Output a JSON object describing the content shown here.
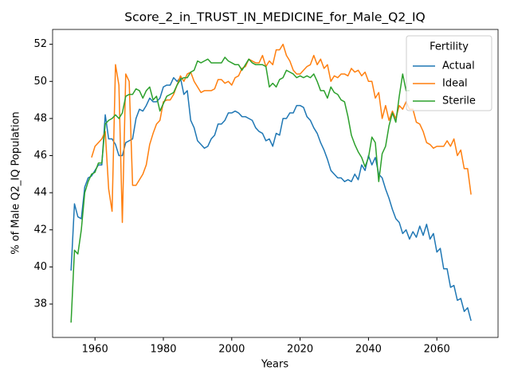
{
  "chart_data": {
    "type": "line",
    "title": "Score_2_in_TRUST_IN_MEDICINE_for_Male_Q2_IQ",
    "xlabel": "Years",
    "ylabel": "% of Male Q2_IQ Population",
    "legend_title": "Fertility",
    "legend": "upper right",
    "grid": false,
    "xlim": [
      1947.6,
      2077.9
    ],
    "xticks": [
      1960,
      1980,
      2000,
      2020,
      2040,
      2060
    ],
    "ylim": [
      36.2,
      52.8
    ],
    "yticks": [
      38,
      40,
      42,
      44,
      46,
      48,
      50,
      52
    ],
    "x": [
      1953,
      1954,
      1955,
      1956,
      1957,
      1958,
      1959,
      1960,
      1961,
      1962,
      1963,
      1964,
      1965,
      1966,
      1967,
      1968,
      1969,
      1970,
      1971,
      1972,
      1973,
      1974,
      1975,
      1976,
      1977,
      1978,
      1979,
      1980,
      1981,
      1982,
      1983,
      1984,
      1985,
      1986,
      1987,
      1988,
      1989,
      1990,
      1991,
      1992,
      1993,
      1994,
      1995,
      1996,
      1997,
      1998,
      1999,
      2000,
      2001,
      2002,
      2003,
      2004,
      2005,
      2006,
      2007,
      2008,
      2009,
      2010,
      2011,
      2012,
      2013,
      2014,
      2015,
      2016,
      2017,
      2018,
      2019,
      2020,
      2021,
      2022,
      2023,
      2024,
      2025,
      2026,
      2027,
      2028,
      2029,
      2030,
      2031,
      2032,
      2033,
      2034,
      2035,
      2036,
      2037,
      2038,
      2039,
      2040,
      2041,
      2042,
      2043,
      2044,
      2045,
      2046,
      2047,
      2048,
      2049,
      2050,
      2051,
      2052,
      2053,
      2054,
      2055,
      2056,
      2057,
      2058,
      2059,
      2060,
      2061,
      2062,
      2063,
      2064,
      2065,
      2066,
      2067,
      2068,
      2069,
      2070
    ],
    "series": [
      {
        "name": "Actual",
        "color": "#1f77b4",
        "values": [
          39.8,
          43.4,
          42.7,
          42.6,
          44.3,
          44.8,
          44.9,
          45.2,
          45.5,
          45.5,
          48.2,
          46.9,
          46.9,
          46.6,
          46.0,
          46.0,
          46.7,
          46.8,
          46.9,
          48.0,
          48.5,
          48.4,
          48.7,
          49.1,
          48.9,
          48.9,
          49.1,
          49.7,
          49.8,
          49.8,
          50.2,
          50.0,
          50.2,
          49.3,
          49.5,
          47.9,
          47.5,
          46.8,
          46.6,
          46.4,
          46.5,
          46.9,
          47.1,
          47.7,
          47.7,
          47.9,
          48.3,
          48.3,
          48.4,
          48.3,
          48.1,
          48.1,
          48.0,
          47.9,
          47.5,
          47.3,
          47.2,
          46.8,
          46.9,
          46.5,
          47.2,
          47.1,
          48.0,
          48.0,
          48.3,
          48.3,
          48.7,
          48.7,
          48.6,
          48.1,
          47.9,
          47.5,
          47.2,
          46.7,
          46.3,
          45.8,
          45.2,
          45.0,
          44.8,
          44.8,
          44.6,
          44.7,
          44.6,
          45.0,
          44.7,
          45.5,
          45.2,
          46.0,
          45.5,
          45.9,
          45.0,
          44.8,
          44.2,
          43.7,
          43.1,
          42.6,
          42.4,
          41.8,
          42.0,
          41.5,
          41.9,
          41.6,
          42.2,
          41.7,
          42.3,
          41.5,
          41.8,
          40.8,
          41.0,
          39.9,
          39.9,
          38.9,
          39.0,
          38.2,
          38.3,
          37.6,
          37.8,
          37.1
        ]
      },
      {
        "name": "Ideal",
        "color": "#ff7f0e",
        "values": [
          null,
          null,
          null,
          null,
          null,
          null,
          45.9,
          46.5,
          46.7,
          46.9,
          47.3,
          44.2,
          43.0,
          50.9,
          49.8,
          42.4,
          50.4,
          50.0,
          44.4,
          44.4,
          44.7,
          45.0,
          45.5,
          46.6,
          47.2,
          47.7,
          47.9,
          48.9,
          49.0,
          49.0,
          49.3,
          49.8,
          50.3,
          50.0,
          50.4,
          50.5,
          50.0,
          49.7,
          49.4,
          49.5,
          49.5,
          49.5,
          49.6,
          50.1,
          50.1,
          49.9,
          50.0,
          49.8,
          50.2,
          50.3,
          50.7,
          50.8,
          51.2,
          51.1,
          51.0,
          51.0,
          51.4,
          50.8,
          51.1,
          50.9,
          51.7,
          51.7,
          52.0,
          51.4,
          51.1,
          50.6,
          50.4,
          50.4,
          50.6,
          50.8,
          50.9,
          51.4,
          50.9,
          51.2,
          50.7,
          50.9,
          50.0,
          50.3,
          50.2,
          50.4,
          50.4,
          50.3,
          50.7,
          50.5,
          50.6,
          50.3,
          50.5,
          50.0,
          50.0,
          49.1,
          49.4,
          48.0,
          48.7,
          47.9,
          48.4,
          48.0,
          48.7,
          48.5,
          48.9,
          48.5,
          48.5,
          47.8,
          47.7,
          47.3,
          46.7,
          46.6,
          46.4,
          46.5,
          46.5,
          46.5,
          46.8,
          46.5,
          46.9,
          46.0,
          46.3,
          45.3,
          45.3,
          43.9
        ]
      },
      {
        "name": "Sterile",
        "color": "#2ca02c",
        "values": [
          37.0,
          40.9,
          40.7,
          42.0,
          44.0,
          44.6,
          45.0,
          45.1,
          45.6,
          45.6,
          47.7,
          47.9,
          48.0,
          48.2,
          48.0,
          48.3,
          49.2,
          49.3,
          49.3,
          49.6,
          49.5,
          49.1,
          49.5,
          49.7,
          49.0,
          49.2,
          48.4,
          48.8,
          49.2,
          49.3,
          49.4,
          49.8,
          50.1,
          50.2,
          50.2,
          50.5,
          50.6,
          51.1,
          51.0,
          51.1,
          51.2,
          51.0,
          51.0,
          51.0,
          51.0,
          51.3,
          51.1,
          51.0,
          50.9,
          50.9,
          50.6,
          50.9,
          51.2,
          51.0,
          50.9,
          50.9,
          50.9,
          50.8,
          49.7,
          49.9,
          49.7,
          50.1,
          50.2,
          50.6,
          50.5,
          50.4,
          50.2,
          50.3,
          50.2,
          50.3,
          50.2,
          50.4,
          50.0,
          49.5,
          49.5,
          49.1,
          49.7,
          49.4,
          49.3,
          49.0,
          48.9,
          48.1,
          47.1,
          46.6,
          46.2,
          45.9,
          45.4,
          45.9,
          47.0,
          46.7,
          44.6,
          46.1,
          46.5,
          47.6,
          48.3,
          47.8,
          49.2,
          50.4,
          49.5,
          49.5,
          null,
          null,
          null,
          null,
          null,
          null,
          null,
          null,
          null,
          null,
          null,
          null,
          null,
          null,
          null,
          null,
          null,
          null
        ]
      }
    ]
  }
}
